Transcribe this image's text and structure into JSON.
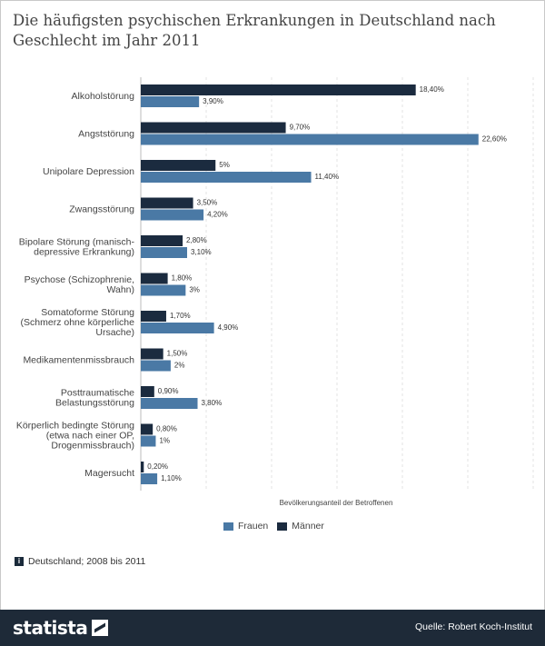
{
  "title": "Die häufigsten psychischen Erkrankungen in Deutschland nach Geschlecht im Jahr 2011",
  "chart_data": {
    "type": "bar",
    "orientation": "horizontal",
    "categories": [
      [
        "Alkoholstörung"
      ],
      [
        "Angststörung"
      ],
      [
        "Unipolare Depression"
      ],
      [
        "Zwangsstörung"
      ],
      [
        "Bipolare Störung (manisch-",
        "depressive Erkrankung)"
      ],
      [
        "Psychose (Schizophrenie,",
        "Wahn)"
      ],
      [
        "Somatoforme Störung",
        "(Schmerz ohne körperliche",
        "Ursache)"
      ],
      [
        "Medikamentenmissbrauch"
      ],
      [
        "Posttraumatische",
        "Belastungsstörung"
      ],
      [
        "Körperlich bedingte Störung",
        "(etwa nach einer OP,",
        "Drogenmissbrauch)"
      ],
      [
        "Magersucht"
      ]
    ],
    "series": [
      {
        "name": "Männer",
        "color": "#1b2b3f",
        "values": [
          18.4,
          9.7,
          5,
          3.5,
          2.8,
          1.8,
          1.7,
          1.5,
          0.9,
          0.8,
          0.2
        ],
        "labels": [
          "18,40%",
          "9,70%",
          "5%",
          "3,50%",
          "2,80%",
          "1,80%",
          "1,70%",
          "1,50%",
          "0,90%",
          "0,80%",
          "0,20%"
        ]
      },
      {
        "name": "Frauen",
        "color": "#4a79a5",
        "values": [
          3.9,
          22.6,
          11.4,
          4.2,
          3.1,
          3,
          4.9,
          2,
          3.8,
          1,
          1.1
        ],
        "labels": [
          "3,90%",
          "22,60%",
          "11,40%",
          "4,20%",
          "3,10%",
          "3%",
          "4,90%",
          "2%",
          "3,80%",
          "1%",
          "1,10%"
        ]
      }
    ],
    "xlabel": "Bevölkerungsanteil der Betroffenen",
    "xlim": [
      0,
      27
    ],
    "grid": true,
    "legend_position": "bottom"
  },
  "legend": {
    "frauen": "Frauen",
    "maenner": "Männer"
  },
  "note": {
    "icon": "i",
    "text": "Deutschland; 2008 bis 2011"
  },
  "footer": {
    "logo": "statista",
    "source": "Quelle: Robert Koch-Institut"
  }
}
